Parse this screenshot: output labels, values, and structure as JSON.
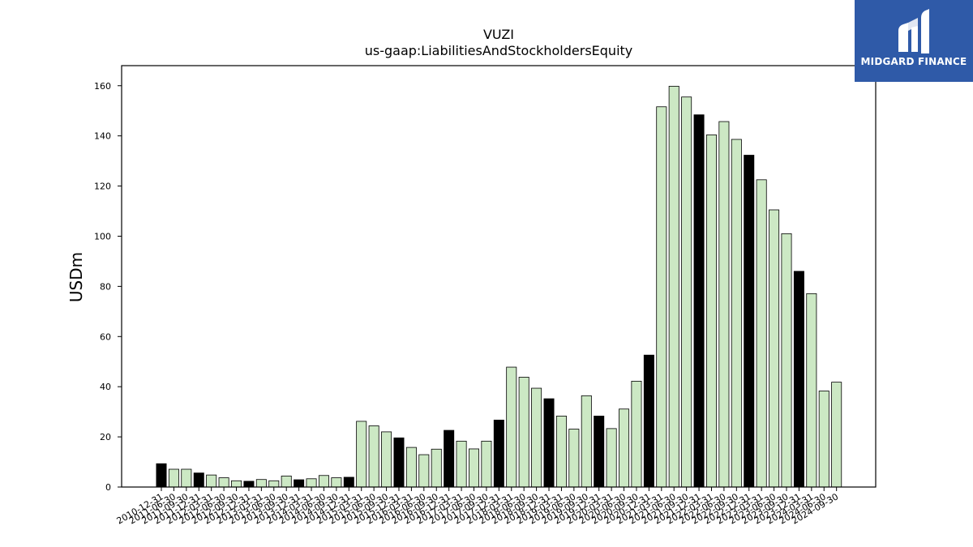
{
  "logo": {
    "text": "MIDGARD FINANCE",
    "background": "#2f5aa8"
  },
  "chart_data": {
    "type": "bar",
    "title": "VUZI",
    "subtitle": "us-gaap:LiabilitiesAndStockholdersEquity",
    "xlabel": "",
    "ylabel": "USDm",
    "ylim": [
      0,
      168
    ],
    "yticks": [
      0,
      20,
      40,
      60,
      80,
      100,
      120,
      140,
      160
    ],
    "grid": false,
    "colors": {
      "annual": "#000000",
      "quarterly": "#cce8c4",
      "edge": "#000000"
    },
    "categories": [
      "2010-12-31",
      "2011-06-30",
      "2011-09-30",
      "2011-12-31",
      "2012-03-31",
      "2012-06-30",
      "2012-09-30",
      "2012-12-31",
      "2013-03-31",
      "2013-06-30",
      "2013-09-30",
      "2013-12-31",
      "2014-03-31",
      "2014-06-30",
      "2014-09-30",
      "2014-12-31",
      "2015-03-31",
      "2015-06-30",
      "2015-09-30",
      "2015-12-31",
      "2016-03-31",
      "2016-06-30",
      "2016-09-30",
      "2016-12-31",
      "2017-03-31",
      "2017-06-30",
      "2017-09-30",
      "2017-12-31",
      "2018-03-31",
      "2018-06-30",
      "2018-09-30",
      "2018-12-31",
      "2019-03-31",
      "2019-06-30",
      "2019-09-30",
      "2019-12-31",
      "2020-03-31",
      "2020-06-30",
      "2020-09-30",
      "2020-12-31",
      "2021-03-31",
      "2021-06-30",
      "2021-09-30",
      "2021-12-31",
      "2022-03-31",
      "2022-06-30",
      "2022-09-30",
      "2022-12-31",
      "2023-03-31",
      "2023-06-30",
      "2023-09-30",
      "2023-12-31",
      "2024-03-31",
      "2024-06-30",
      "2024-09-30"
    ],
    "values": [
      9.3,
      7.1,
      7.1,
      5.6,
      4.8,
      3.7,
      2.5,
      2.3,
      3.0,
      2.5,
      4.4,
      2.9,
      3.3,
      4.6,
      3.7,
      3.9,
      26.2,
      24.4,
      22.0,
      19.6,
      15.8,
      12.9,
      15.1,
      22.6,
      18.3,
      15.2,
      18.3,
      26.7,
      47.8,
      43.8,
      39.4,
      35.2,
      28.3,
      23.1,
      36.4,
      28.3,
      23.3,
      31.1,
      42.2,
      52.6,
      151.6,
      159.8,
      155.5,
      148.4,
      140.4,
      145.7,
      138.6,
      132.3,
      122.5,
      110.5,
      101.0,
      86.0,
      77.1,
      38.3,
      41.8
    ],
    "annual": [
      true,
      false,
      false,
      true,
      false,
      false,
      false,
      true,
      false,
      false,
      false,
      true,
      false,
      false,
      false,
      true,
      false,
      false,
      false,
      true,
      false,
      false,
      false,
      true,
      false,
      false,
      false,
      true,
      false,
      false,
      false,
      true,
      false,
      false,
      false,
      true,
      false,
      false,
      false,
      true,
      false,
      false,
      false,
      true,
      false,
      false,
      false,
      true,
      false,
      false,
      false,
      true,
      false,
      false,
      false
    ]
  }
}
